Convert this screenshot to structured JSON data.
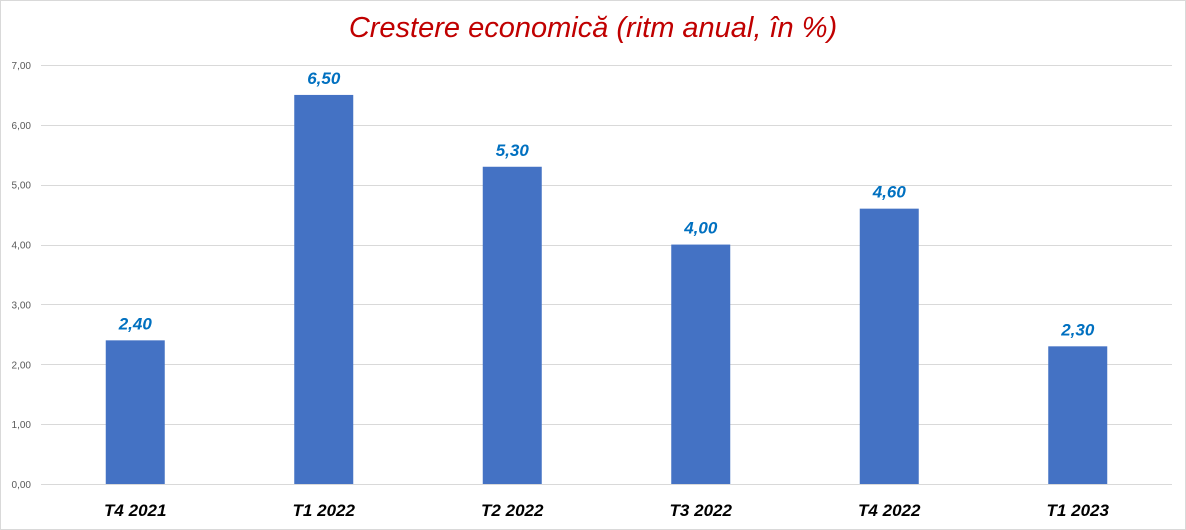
{
  "chart_data": {
    "type": "bar",
    "title": "Crestere economică (ritm anual, în %)",
    "categories": [
      "T4 2021",
      "T1 2022",
      "T2 2022",
      "T3 2022",
      "T4 2022",
      "T1 2023"
    ],
    "values": [
      2.4,
      6.5,
      5.3,
      4.0,
      4.6,
      2.3
    ],
    "data_labels": [
      "2,40",
      "6,50",
      "5,30",
      "4,00",
      "4,60",
      "2,30"
    ],
    "ylim": [
      0,
      7
    ],
    "yticks": [
      0,
      1,
      2,
      3,
      4,
      5,
      6,
      7
    ],
    "ytick_labels": [
      "0,00",
      "1,00",
      "2,00",
      "3,00",
      "4,00",
      "5,00",
      "6,00",
      "7,00"
    ],
    "xlabel": "",
    "ylabel": "",
    "grid": true,
    "legend": "none",
    "colors": {
      "bar": "#4472c4",
      "data_label": "#0070c0",
      "title": "#c00000",
      "grid": "#d9d9d9"
    }
  }
}
